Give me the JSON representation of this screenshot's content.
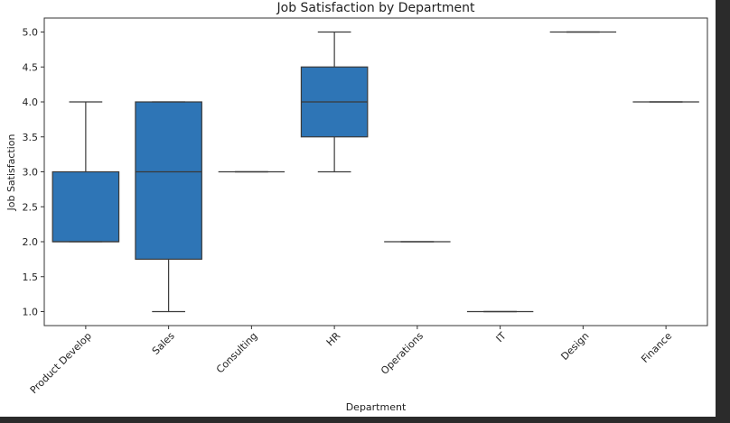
{
  "chart_data": {
    "type": "box",
    "title": "Job Satisfaction by Department",
    "xlabel": "Department",
    "ylabel": "Job Satisfaction",
    "ylim": [
      0.8,
      5.2
    ],
    "yticks": [
      "1.0",
      "1.5",
      "2.0",
      "2.5",
      "3.0",
      "3.5",
      "4.0",
      "4.5",
      "5.0"
    ],
    "grid": false,
    "box_color": "#2e75b6",
    "line_color": "#3a3a3a",
    "categories": [
      "Product Develop",
      "Sales",
      "Consulting",
      "HR",
      "Operations",
      "IT",
      "Design",
      "Finance"
    ],
    "boxes": [
      {
        "category": "Product Develop",
        "whisker_low": 2.0,
        "q1": 2.0,
        "median": 2.0,
        "q3": 3.0,
        "whisker_high": 4.0
      },
      {
        "category": "Sales",
        "whisker_low": 1.0,
        "q1": 1.75,
        "median": 3.0,
        "q3": 4.0,
        "whisker_high": 4.0
      },
      {
        "category": "Consulting",
        "whisker_low": 3.0,
        "q1": 3.0,
        "median": 3.0,
        "q3": 3.0,
        "whisker_high": 3.0
      },
      {
        "category": "HR",
        "whisker_low": 3.0,
        "q1": 3.5,
        "median": 4.0,
        "q3": 4.5,
        "whisker_high": 5.0
      },
      {
        "category": "Operations",
        "whisker_low": 2.0,
        "q1": 2.0,
        "median": 2.0,
        "q3": 2.0,
        "whisker_high": 2.0
      },
      {
        "category": "IT",
        "whisker_low": 1.0,
        "q1": 1.0,
        "median": 1.0,
        "q3": 1.0,
        "whisker_high": 1.0
      },
      {
        "category": "Design",
        "whisker_low": 5.0,
        "q1": 5.0,
        "median": 5.0,
        "q3": 5.0,
        "whisker_high": 5.0
      },
      {
        "category": "Finance",
        "whisker_low": 4.0,
        "q1": 4.0,
        "median": 4.0,
        "q3": 4.0,
        "whisker_high": 4.0
      }
    ]
  }
}
